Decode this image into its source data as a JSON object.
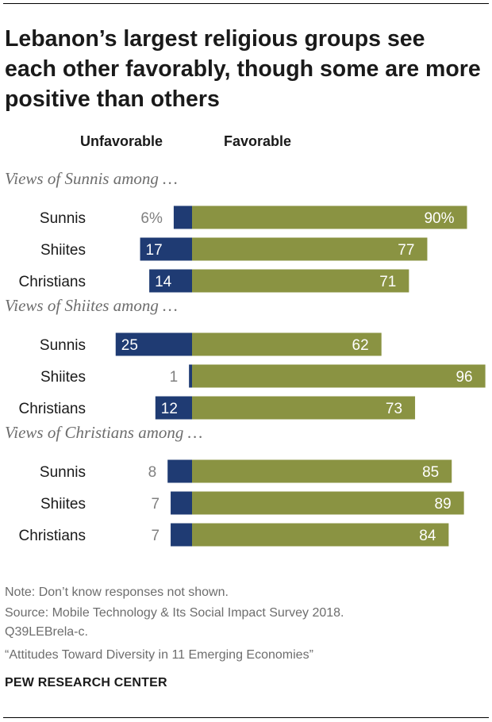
{
  "title": "Lebanon’s largest religious groups see each other favorably, though some are more positive than others",
  "colors": {
    "unfavorable": "#1f3b73",
    "favorable": "#8a9342",
    "value_out": "#808080",
    "value_in": "#ffffff"
  },
  "chart_data": {
    "type": "bar",
    "orientation": "horizontal-diverging",
    "legend": {
      "unfavorable": "Unfavorable",
      "favorable": "Favorable"
    },
    "xlim": [
      -30,
      100
    ],
    "groups": [
      {
        "label": "Views of Sunnis among …",
        "rows": [
          {
            "category": "Sunnis",
            "unfavorable": 6,
            "favorable": 90,
            "unfav_label": "6%",
            "fav_label": "90%"
          },
          {
            "category": "Shiites",
            "unfavorable": 17,
            "favorable": 77,
            "unfav_label": "17",
            "fav_label": "77"
          },
          {
            "category": "Christians",
            "unfavorable": 14,
            "favorable": 71,
            "unfav_label": "14",
            "fav_label": "71"
          }
        ]
      },
      {
        "label": "Views of Shiites among …",
        "rows": [
          {
            "category": "Sunnis",
            "unfavorable": 25,
            "favorable": 62,
            "unfav_label": "25",
            "fav_label": "62"
          },
          {
            "category": "Shiites",
            "unfavorable": 1,
            "favorable": 96,
            "unfav_label": "1",
            "fav_label": "96"
          },
          {
            "category": "Christians",
            "unfavorable": 12,
            "favorable": 73,
            "unfav_label": "12",
            "fav_label": "73"
          }
        ]
      },
      {
        "label": "Views of Christians among …",
        "rows": [
          {
            "category": "Sunnis",
            "unfavorable": 8,
            "favorable": 85,
            "unfav_label": "8",
            "fav_label": "85"
          },
          {
            "category": "Shiites",
            "unfavorable": 7,
            "favorable": 89,
            "unfav_label": "7",
            "fav_label": "89"
          },
          {
            "category": "Christians",
            "unfavorable": 7,
            "favorable": 84,
            "unfav_label": "7",
            "fav_label": "84"
          }
        ]
      }
    ]
  },
  "footer": {
    "note": "Note: Don’t know responses not shown.",
    "source": "Source: Mobile Technology & Its Social Impact Survey 2018.",
    "question": "Q39LEBrela-c.",
    "report": "“Attitudes Toward Diversity in 11 Emerging Economies”",
    "brand": "PEW RESEARCH CENTER"
  }
}
